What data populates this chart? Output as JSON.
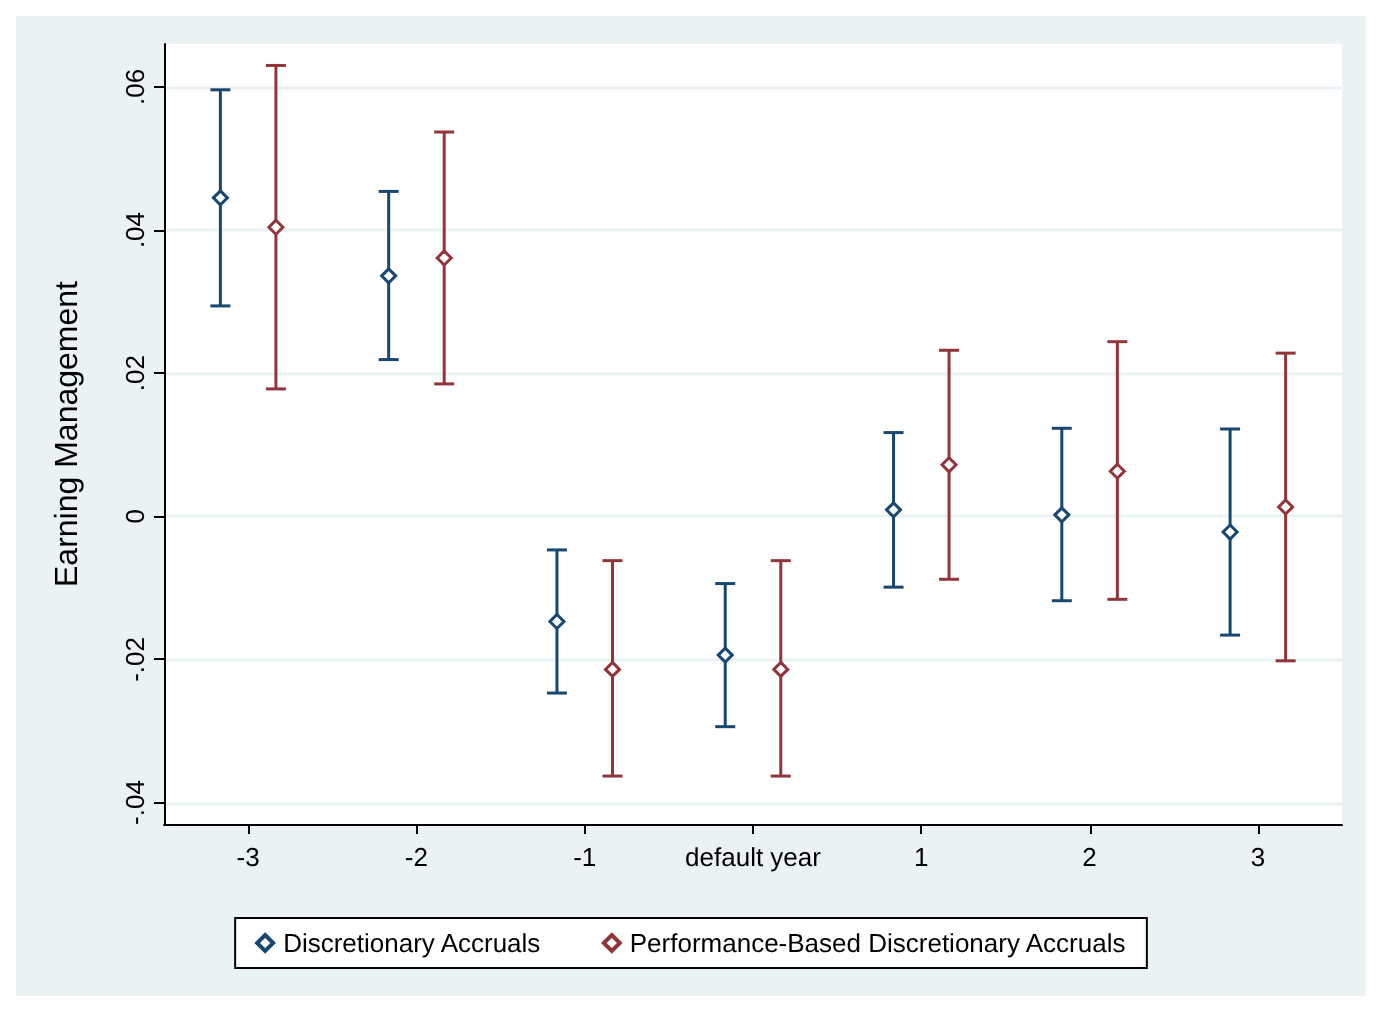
{
  "chart_data": {
    "type": "scatter",
    "ylabel": "Earning Management",
    "categories": [
      "-3",
      "-2",
      "-1",
      "default year",
      "1",
      "2",
      "3"
    ],
    "ylim": [
      -0.043,
      0.066
    ],
    "yticks": [
      {
        "value": -0.04,
        "label": "-.04"
      },
      {
        "value": -0.02,
        "label": "-.02"
      },
      {
        "value": 0,
        "label": "0"
      },
      {
        "value": 0.02,
        "label": ".02"
      },
      {
        "value": 0.04,
        "label": ".04"
      },
      {
        "value": 0.06,
        "label": ".06"
      }
    ],
    "series": [
      {
        "name": "Discretionary Accruals",
        "color": "#1a476f",
        "values": [
          0.0445,
          0.0336,
          -0.0147,
          -0.0194,
          0.0009,
          0.0002,
          -0.0022
        ],
        "errors": [
          [
            0.0294,
            0.0596
          ],
          [
            0.0219,
            0.0454
          ],
          [
            -0.0247,
            -0.0047
          ],
          [
            -0.0294,
            -0.0094
          ],
          [
            -0.0099,
            0.0117
          ],
          [
            -0.0118,
            0.0123
          ],
          [
            -0.0166,
            0.0122
          ]
        ]
      },
      {
        "name": "Performance-Based Discretionary Accruals",
        "color": "#90353b",
        "values": [
          0.0404,
          0.0361,
          -0.0214,
          -0.0214,
          0.0072,
          0.0063,
          0.0013
        ],
        "errors": [
          [
            0.0178,
            0.063
          ],
          [
            0.0185,
            0.0537
          ],
          [
            -0.0363,
            -0.0062
          ],
          [
            -0.0363,
            -0.0062
          ],
          [
            -0.0088,
            0.0232
          ],
          [
            -0.0116,
            0.0244
          ],
          [
            -0.0202,
            0.0228
          ]
        ]
      }
    ],
    "grid": "y",
    "legend": "bottom",
    "marker": "diamond"
  }
}
